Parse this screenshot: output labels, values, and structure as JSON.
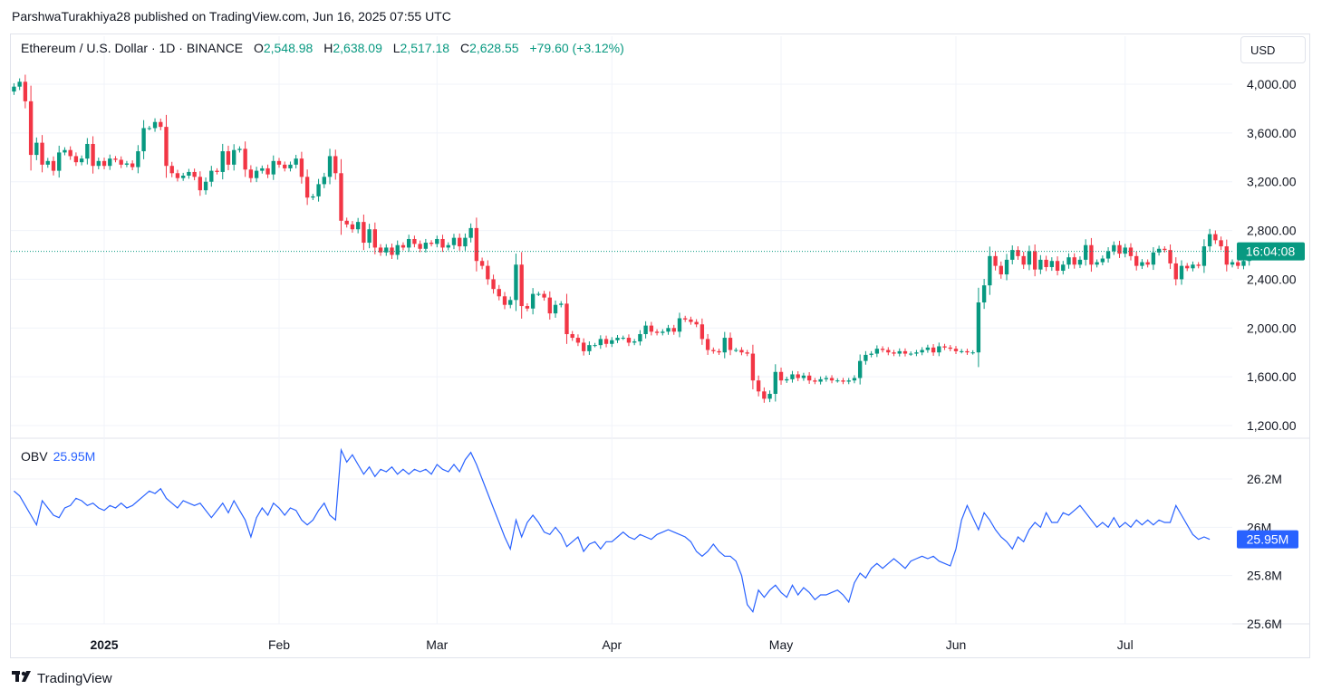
{
  "header": {
    "credit": "ParshwaTurakhiya28 published on TradingView.com, Jun 16, 2025 07:55 UTC"
  },
  "legend": {
    "symbol": "Ethereum / U.S. Dollar · 1D · BINANCE",
    "o_label": "O",
    "o_value": "2,548.98",
    "h_label": "H",
    "h_value": "2,638.09",
    "l_label": "L",
    "l_value": "2,517.18",
    "c_label": "C",
    "c_value": "2,628.55",
    "change": "+79.60 (+3.12%)"
  },
  "currency_button": "USD",
  "obv_legend": {
    "name": "OBV",
    "value": "25.95M"
  },
  "footer": {
    "brand": "TradingView",
    "logo_icon": "tradingview-logo-icon"
  },
  "colors": {
    "up": "#089981",
    "down": "#f23645",
    "obv": "#2962ff",
    "grid": "#f0f3fa",
    "axis_text": "#131722"
  },
  "chart_data": [
    {
      "type": "candlestick",
      "title": "Ethereum / U.S. Dollar · 1D · BINANCE",
      "ylim": [
        1150,
        4150
      ],
      "y_ticks": [
        4000,
        3600,
        3200,
        2800,
        2400,
        2000,
        1600,
        1200
      ],
      "y_tick_labels": [
        "4,000.00",
        "3,600.00",
        "3,200.00",
        "2,800.00",
        "2,400.00",
        "2,000.00",
        "1,600.00",
        "1,200.00"
      ],
      "x_tick_labels": [
        {
          "label": "2025",
          "date": "2025-01-01",
          "bold": true
        },
        {
          "label": "Feb",
          "date": "2025-02-01"
        },
        {
          "label": "Mar",
          "date": "2025-03-01"
        },
        {
          "label": "Apr",
          "date": "2025-04-01"
        },
        {
          "label": "May",
          "date": "2025-05-01"
        },
        {
          "label": "Jun",
          "date": "2025-06-01"
        },
        {
          "label": "Jul",
          "date": "2025-07-01"
        }
      ],
      "last_price_label": "16:04:08",
      "last_price": 2628.55,
      "start_date": "2024-12-16",
      "closes": [
        3980,
        4020,
        3860,
        3420,
        3520,
        3340,
        3370,
        3290,
        3440,
        3460,
        3410,
        3360,
        3390,
        3510,
        3330,
        3370,
        3330,
        3390,
        3380,
        3340,
        3350,
        3320,
        3450,
        3640,
        3640,
        3690,
        3650,
        3330,
        3270,
        3230,
        3250,
        3280,
        3240,
        3130,
        3200,
        3290,
        3280,
        3450,
        3340,
        3460,
        3470,
        3300,
        3230,
        3290,
        3310,
        3260,
        3370,
        3340,
        3310,
        3340,
        3390,
        3240,
        3070,
        3080,
        3180,
        3240,
        3410,
        3270,
        2880,
        2850,
        2810,
        2870,
        2700,
        2810,
        2660,
        2620,
        2660,
        2600,
        2680,
        2660,
        2730,
        2690,
        2650,
        2700,
        2690,
        2730,
        2660,
        2680,
        2740,
        2670,
        2740,
        2820,
        2550,
        2510,
        2400,
        2320,
        2260,
        2190,
        2230,
        2520,
        2180,
        2160,
        2280,
        2280,
        2250,
        2120,
        2190,
        2200,
        1950,
        1920,
        1880,
        1810,
        1860,
        1860,
        1910,
        1870,
        1900,
        1920,
        1920,
        1880,
        1890,
        1950,
        2020,
        1970,
        1960,
        1970,
        2000,
        1970,
        2080,
        2070,
        2050,
        2030,
        1910,
        1820,
        1810,
        1800,
        1920,
        1820,
        1820,
        1800,
        1790,
        1570,
        1480,
        1420,
        1460,
        1640,
        1570,
        1580,
        1620,
        1590,
        1610,
        1570,
        1560,
        1580,
        1590,
        1570,
        1570,
        1560,
        1570,
        1590,
        1730,
        1780,
        1790,
        1830,
        1820,
        1800,
        1790,
        1810,
        1790,
        1790,
        1800,
        1820,
        1840,
        1800,
        1850,
        1840,
        1830,
        1810,
        1810,
        1800,
        1800,
        2210,
        2350,
        2590,
        2510,
        2440,
        2560,
        2640,
        2590,
        2520,
        2630,
        2480,
        2560,
        2500,
        2550,
        2470,
        2520,
        2580,
        2520,
        2560,
        2680,
        2520,
        2540,
        2570,
        2630,
        2680,
        2610,
        2660,
        2590,
        2510,
        2540,
        2520,
        2620,
        2650,
        2640,
        2530,
        2400,
        2510,
        2490,
        2520,
        2510,
        2670,
        2770,
        2720,
        2670,
        2520,
        2540,
        2510,
        2550,
        2630
      ]
    },
    {
      "type": "line",
      "name": "OBV",
      "y_unit": "M",
      "ylim": [
        25.59,
        26.42
      ],
      "y_ticks": [
        26.2,
        26.0,
        25.8,
        25.6
      ],
      "y_tick_labels": [
        "26.2M",
        "26M",
        "25.8M",
        "25.6M"
      ],
      "last_value_label": "25.95M",
      "start_date": "2024-12-16",
      "values": [
        26.15,
        26.13,
        26.09,
        26.05,
        26.01,
        26.11,
        26.08,
        26.05,
        26.04,
        26.08,
        26.09,
        26.12,
        26.11,
        26.09,
        26.1,
        26.08,
        26.07,
        26.09,
        26.08,
        26.1,
        26.08,
        26.09,
        26.11,
        26.13,
        26.15,
        26.14,
        26.16,
        26.12,
        26.1,
        26.08,
        26.11,
        26.1,
        26.09,
        26.1,
        26.07,
        26.04,
        26.07,
        26.1,
        26.06,
        26.11,
        26.07,
        26.03,
        25.96,
        26.04,
        26.08,
        26.05,
        26.1,
        26.08,
        26.05,
        26.08,
        26.07,
        26.03,
        26.01,
        26.03,
        26.07,
        26.1,
        26.05,
        26.03,
        26.32,
        26.27,
        26.3,
        26.26,
        26.22,
        26.25,
        26.21,
        26.24,
        26.23,
        26.25,
        26.22,
        26.24,
        26.22,
        26.24,
        26.23,
        26.24,
        26.22,
        26.26,
        26.24,
        26.23,
        26.26,
        26.23,
        26.28,
        26.31,
        26.26,
        26.2,
        26.14,
        26.08,
        26.02,
        25.96,
        25.91,
        26.03,
        25.96,
        26.02,
        26.05,
        26.02,
        25.98,
        25.97,
        26.0,
        25.97,
        25.92,
        25.94,
        25.96,
        25.9,
        25.93,
        25.94,
        25.91,
        25.94,
        25.94,
        25.96,
        25.98,
        25.96,
        25.95,
        25.97,
        25.96,
        25.95,
        25.97,
        25.98,
        25.99,
        25.98,
        25.97,
        25.96,
        25.94,
        25.9,
        25.88,
        25.9,
        25.93,
        25.9,
        25.88,
        25.88,
        25.86,
        25.8,
        25.68,
        25.65,
        25.74,
        25.71,
        25.74,
        25.76,
        25.73,
        25.71,
        25.76,
        25.72,
        25.75,
        25.73,
        25.7,
        25.72,
        25.72,
        25.73,
        25.74,
        25.72,
        25.69,
        25.77,
        25.81,
        25.79,
        25.83,
        25.85,
        25.83,
        25.85,
        25.87,
        25.85,
        25.83,
        25.86,
        25.87,
        25.88,
        25.87,
        25.88,
        25.86,
        25.85,
        25.84,
        25.91,
        26.03,
        26.09,
        26.04,
        25.99,
        26.06,
        26.03,
        25.99,
        25.96,
        25.94,
        25.91,
        25.96,
        25.94,
        25.99,
        26.02,
        26.0,
        26.06,
        26.02,
        26.02,
        26.06,
        26.05,
        26.07,
        26.09,
        26.06,
        26.03,
        26.0,
        26.02,
        26.0,
        26.04,
        26.0,
        26.02,
        26.0,
        26.03,
        26.01,
        26.03,
        26.01,
        26.03,
        26.02,
        26.02,
        26.09,
        26.05,
        26.01,
        25.97,
        25.95,
        25.96,
        25.95
      ]
    }
  ]
}
